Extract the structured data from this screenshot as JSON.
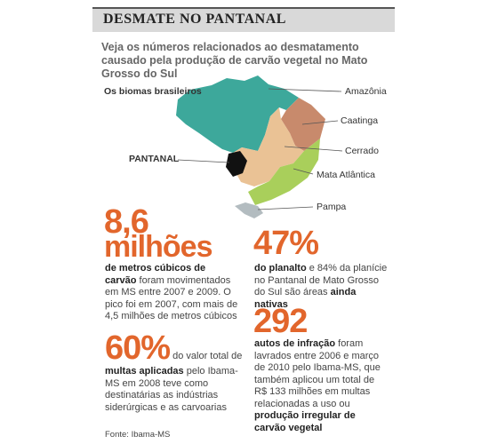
{
  "header": {
    "title": "DESMATE NO PANTANAL",
    "subtitle": "Veja os números relacionados ao desmatamento causado pela produção de carvão vegetal no Mato Grosso do Sul"
  },
  "map": {
    "title": "Os biomas brasileiros",
    "labels": [
      "Amazônia",
      "Caatinga",
      "Cerrado",
      "PANTANAL",
      "Mata Atlântica",
      "Pampa"
    ]
  },
  "stats": [
    {
      "number": "8,6",
      "unit": "milhões",
      "text": [
        {
          "t": "de metros cúbicos de carvão",
          "bold": true
        },
        {
          "t": " foram movimentados em MS entre 2007 e 2009. O pico foi em 2007, com mais de 4,5 milhões de metros cúbicos",
          "bold": false
        }
      ]
    },
    {
      "number": "47%",
      "text": [
        {
          "t": "do planalto",
          "bold": true
        },
        {
          "t": " e 84% da planície no Pantanal de Mato Grosso do Sul são áreas ",
          "bold": false
        },
        {
          "t": "ainda nativas",
          "bold": true
        }
      ]
    },
    {
      "number": "292",
      "text": [
        {
          "t": "autos de infração",
          "bold": true
        },
        {
          "t": " foram lavrados entre 2006 e março de 2010 pelo Ibama-MS, que também aplicou um total de R$ 133 milhões em multas relacionadas a uso ou ",
          "bold": false
        },
        {
          "t": "produção irregular de carvão vegetal",
          "bold": true
        }
      ]
    },
    {
      "number": "60%",
      "text": [
        {
          "t": " do valor total de ",
          "bold": false
        },
        {
          "t": "multas aplicadas",
          "bold": true
        },
        {
          "t": " pelo Ibama-MS em 2008 teve como destinatárias as indústrias siderúrgicas e as carvoarias",
          "bold": false
        }
      ]
    }
  ],
  "source": "Fonte: Ibama-MS"
}
